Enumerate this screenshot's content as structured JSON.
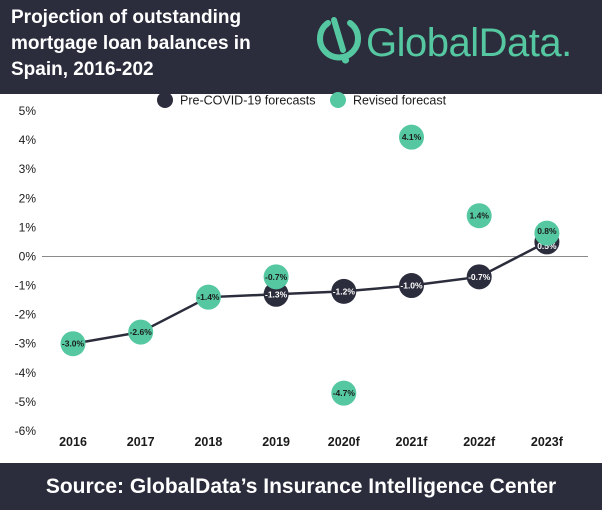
{
  "header": {
    "title": "Projection of outstanding mortgage loan balances in Spain, 2016-202",
    "logo_text": "GlobalData.",
    "logo_icon": "globaldata-logo-icon"
  },
  "footer": {
    "source": "Source: GlobalData’s Insurance Intelligence Center"
  },
  "colors": {
    "dark": "#2b2d3c",
    "accent": "#55c8a1"
  },
  "chart_data": {
    "type": "scatter",
    "categories": [
      "2016",
      "2017",
      "2018",
      "2019",
      "2020f",
      "2021f",
      "2022f",
      "2023f"
    ],
    "yticks": [
      "5%",
      "4%",
      "3%",
      "2%",
      "1%",
      "0%",
      "-1%",
      "-2%",
      "-3%",
      "-4%",
      "-5%",
      "-6%"
    ],
    "ylim": [
      -6,
      5
    ],
    "grid": false,
    "legend_position": "top",
    "series": [
      {
        "name": "Pre-COVID-19 forecasts",
        "color": "#2b2d3c",
        "connected": true,
        "values": [
          -3.0,
          -2.6,
          -1.4,
          -1.3,
          -1.2,
          -1.0,
          -0.7,
          0.5
        ],
        "labels": [
          "-3.0%",
          "-2.6%",
          "-1.4%",
          "-1.3%",
          "-1.2%",
          "-1.0%",
          "-0.7%",
          "0.5%"
        ]
      },
      {
        "name": "Revised forecast",
        "color": "#55c8a1",
        "connected": false,
        "values": [
          -3.0,
          -2.6,
          -1.4,
          -0.7,
          -4.7,
          4.1,
          1.4,
          0.8
        ],
        "labels": [
          "-3.0%",
          "-2.6%",
          "-1.4%",
          "-0.7%",
          "-4.7%",
          "4.1%",
          "1.4%",
          "0.8%"
        ]
      }
    ]
  }
}
